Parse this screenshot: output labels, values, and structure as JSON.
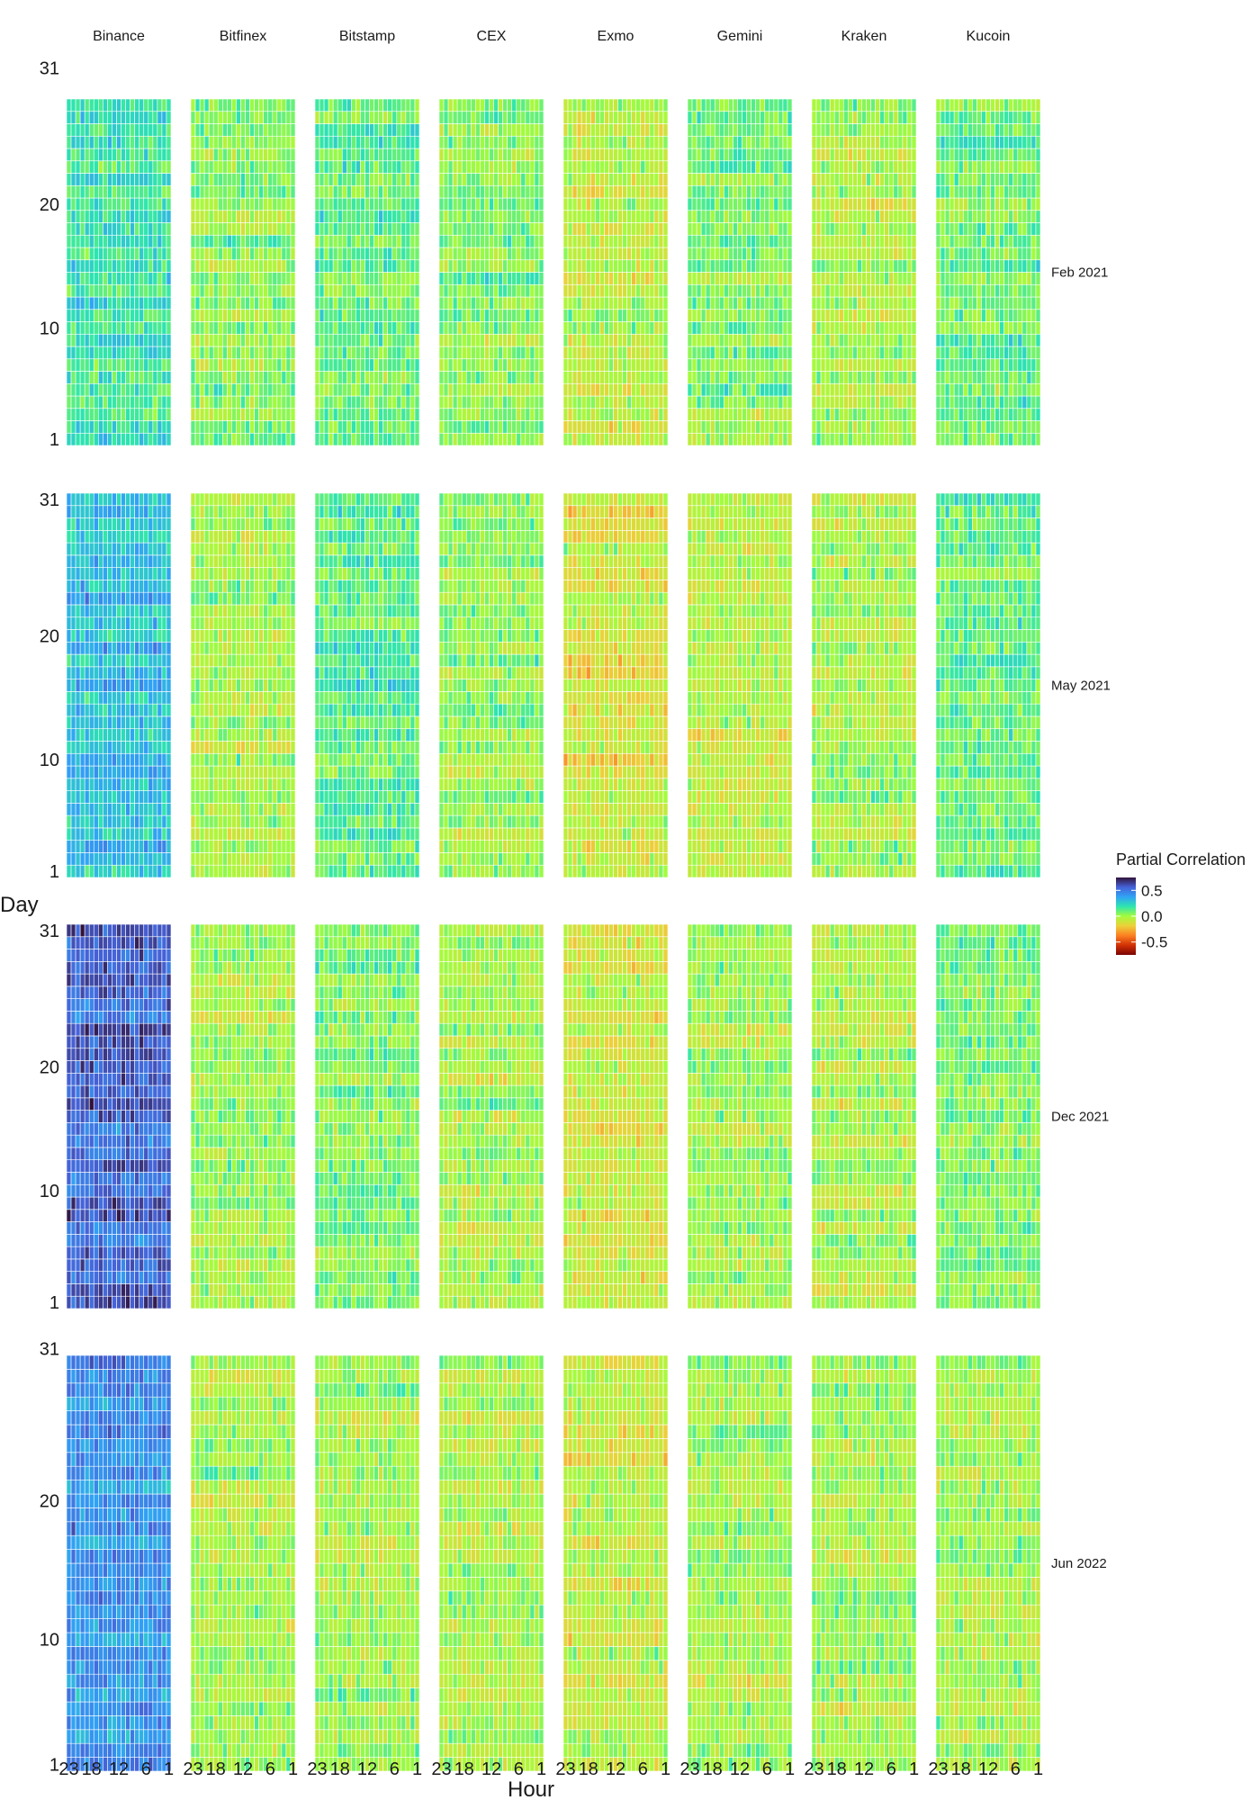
{
  "chart_data": {
    "type": "heatmap",
    "x_title": "Hour",
    "y_title": "Day",
    "columns": [
      "Binance",
      "Bitfinex",
      "Bitstamp",
      "CEX",
      "Exmo",
      "Gemini",
      "Kraken",
      "Kucoin"
    ],
    "rows": [
      {
        "label": "Feb 2021",
        "days": 28
      },
      {
        "label": "May 2021",
        "days": 31
      },
      {
        "label": "Dec 2021",
        "days": 31
      },
      {
        "label": "Jun 2022",
        "days": 30
      }
    ],
    "x_ticks": [
      "23",
      "18",
      "12",
      "6",
      "1"
    ],
    "x_tick_values": [
      23,
      18,
      12,
      6,
      1
    ],
    "y_ticks": [
      "1",
      "10",
      "20",
      "31"
    ],
    "y_tick_values": [
      1,
      10,
      20,
      31
    ],
    "hours_range": [
      1,
      23
    ],
    "days_range": [
      1,
      31
    ],
    "legend": {
      "title": "Partial Correlation",
      "ticks": [
        "0.5",
        "0.0",
        "-0.5"
      ],
      "tick_values": [
        0.5,
        0.0,
        -0.5
      ],
      "range": [
        -0.75,
        0.75
      ]
    },
    "colorscale": [
      "#7a0403",
      "#d23105",
      "#fb8022",
      "#edd03a",
      "#a4fc3c",
      "#2ee5ae",
      "#30a3f5",
      "#4662d8",
      "#30123b"
    ],
    "mean_correlation_by_row": [
      [
        0.18,
        0.05,
        0.1,
        0.05,
        -0.05,
        0.06,
        0.0,
        0.08
      ],
      [
        0.3,
        -0.02,
        0.12,
        0.03,
        -0.1,
        -0.05,
        0.0,
        0.12
      ],
      [
        0.55,
        0.0,
        0.05,
        0.0,
        -0.08,
        0.0,
        0.0,
        0.05
      ],
      [
        0.42,
        0.0,
        0.0,
        -0.02,
        -0.05,
        0.0,
        0.0,
        0.0
      ]
    ],
    "value_spread": 0.18
  }
}
